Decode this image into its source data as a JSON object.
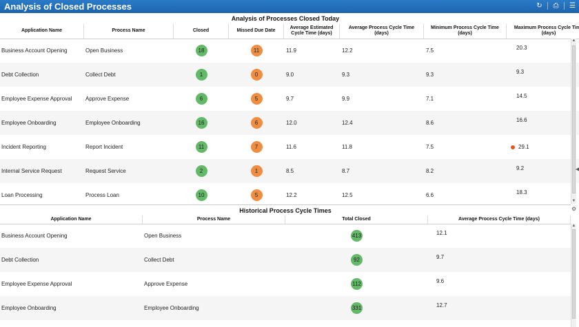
{
  "window": {
    "title": "Analysis of Closed Processes",
    "icons": [
      "refresh-icon",
      "print-icon",
      "menu-icon"
    ]
  },
  "today": {
    "title": "Analysis of Processes Closed Today",
    "headers": [
      "Application Name",
      "Process Name",
      "Closed",
      "Missed Due Date",
      "Average Estimated Cycle Time (days)",
      "Average Process Cycle Time (days)",
      "Minimum Process Cycle Time (days)",
      "Maximum Process Cycle Time (days)"
    ],
    "rows": [
      {
        "app": "Business Account Opening",
        "process": "Open Business",
        "closed": "18",
        "missed": "11",
        "est": "11.9",
        "avg": "12.2",
        "min": "7.5",
        "max": "20.3",
        "flag": false
      },
      {
        "app": "Debt Collection",
        "process": "Collect Debt",
        "closed": "1",
        "missed": "0",
        "est": "9.0",
        "avg": "9.3",
        "min": "9.3",
        "max": "9.3",
        "flag": false
      },
      {
        "app": "Employee Expense Approval",
        "process": "Approve Expense",
        "closed": "6",
        "missed": "5",
        "est": "9.7",
        "avg": "9.9",
        "min": "7.1",
        "max": "14.5",
        "flag": false
      },
      {
        "app": "Employee Onboarding",
        "process": "Employee Onboarding",
        "closed": "16",
        "missed": "6",
        "est": "12.0",
        "avg": "12.4",
        "min": "8.6",
        "max": "16.6",
        "flag": false
      },
      {
        "app": "Incident Reporting",
        "process": "Report Incident",
        "closed": "11",
        "missed": "7",
        "est": "11.6",
        "avg": "11.8",
        "min": "7.5",
        "max": "29.1",
        "flag": true
      },
      {
        "app": "Internal Service Request",
        "process": "Request Service",
        "closed": "2",
        "missed": "1",
        "est": "8.5",
        "avg": "8.7",
        "min": "8.2",
        "max": "9.2",
        "flag": false
      },
      {
        "app": "Loan Processing",
        "process": "Process Loan",
        "closed": "10",
        "missed": "5",
        "est": "12.2",
        "avg": "12.5",
        "min": "6.6",
        "max": "18.3",
        "flag": false
      }
    ]
  },
  "historical": {
    "title": "Historical Process Cycle Times",
    "headers": [
      "Application Name",
      "Process Name",
      "Total Closed",
      "Average Process Cycle Time (days)"
    ],
    "rows": [
      {
        "app": "Business Account Opening",
        "process": "Open Business",
        "total": "413",
        "avg": "12.1"
      },
      {
        "app": "Debt Collection",
        "process": "Collect Debt",
        "total": "92",
        "avg": "9.7"
      },
      {
        "app": "Employee Expense Approval",
        "process": "Approve Expense",
        "total": "112",
        "avg": "9.6"
      },
      {
        "app": "Employee Onboarding",
        "process": "Employee Onboarding",
        "total": "331",
        "avg": "12.7"
      }
    ]
  },
  "colors": {
    "titlebar": "#1f64ad",
    "closed_badge": "#63b967",
    "missed_badge": "#ef8d43",
    "flag_dot": "#e8561f"
  }
}
